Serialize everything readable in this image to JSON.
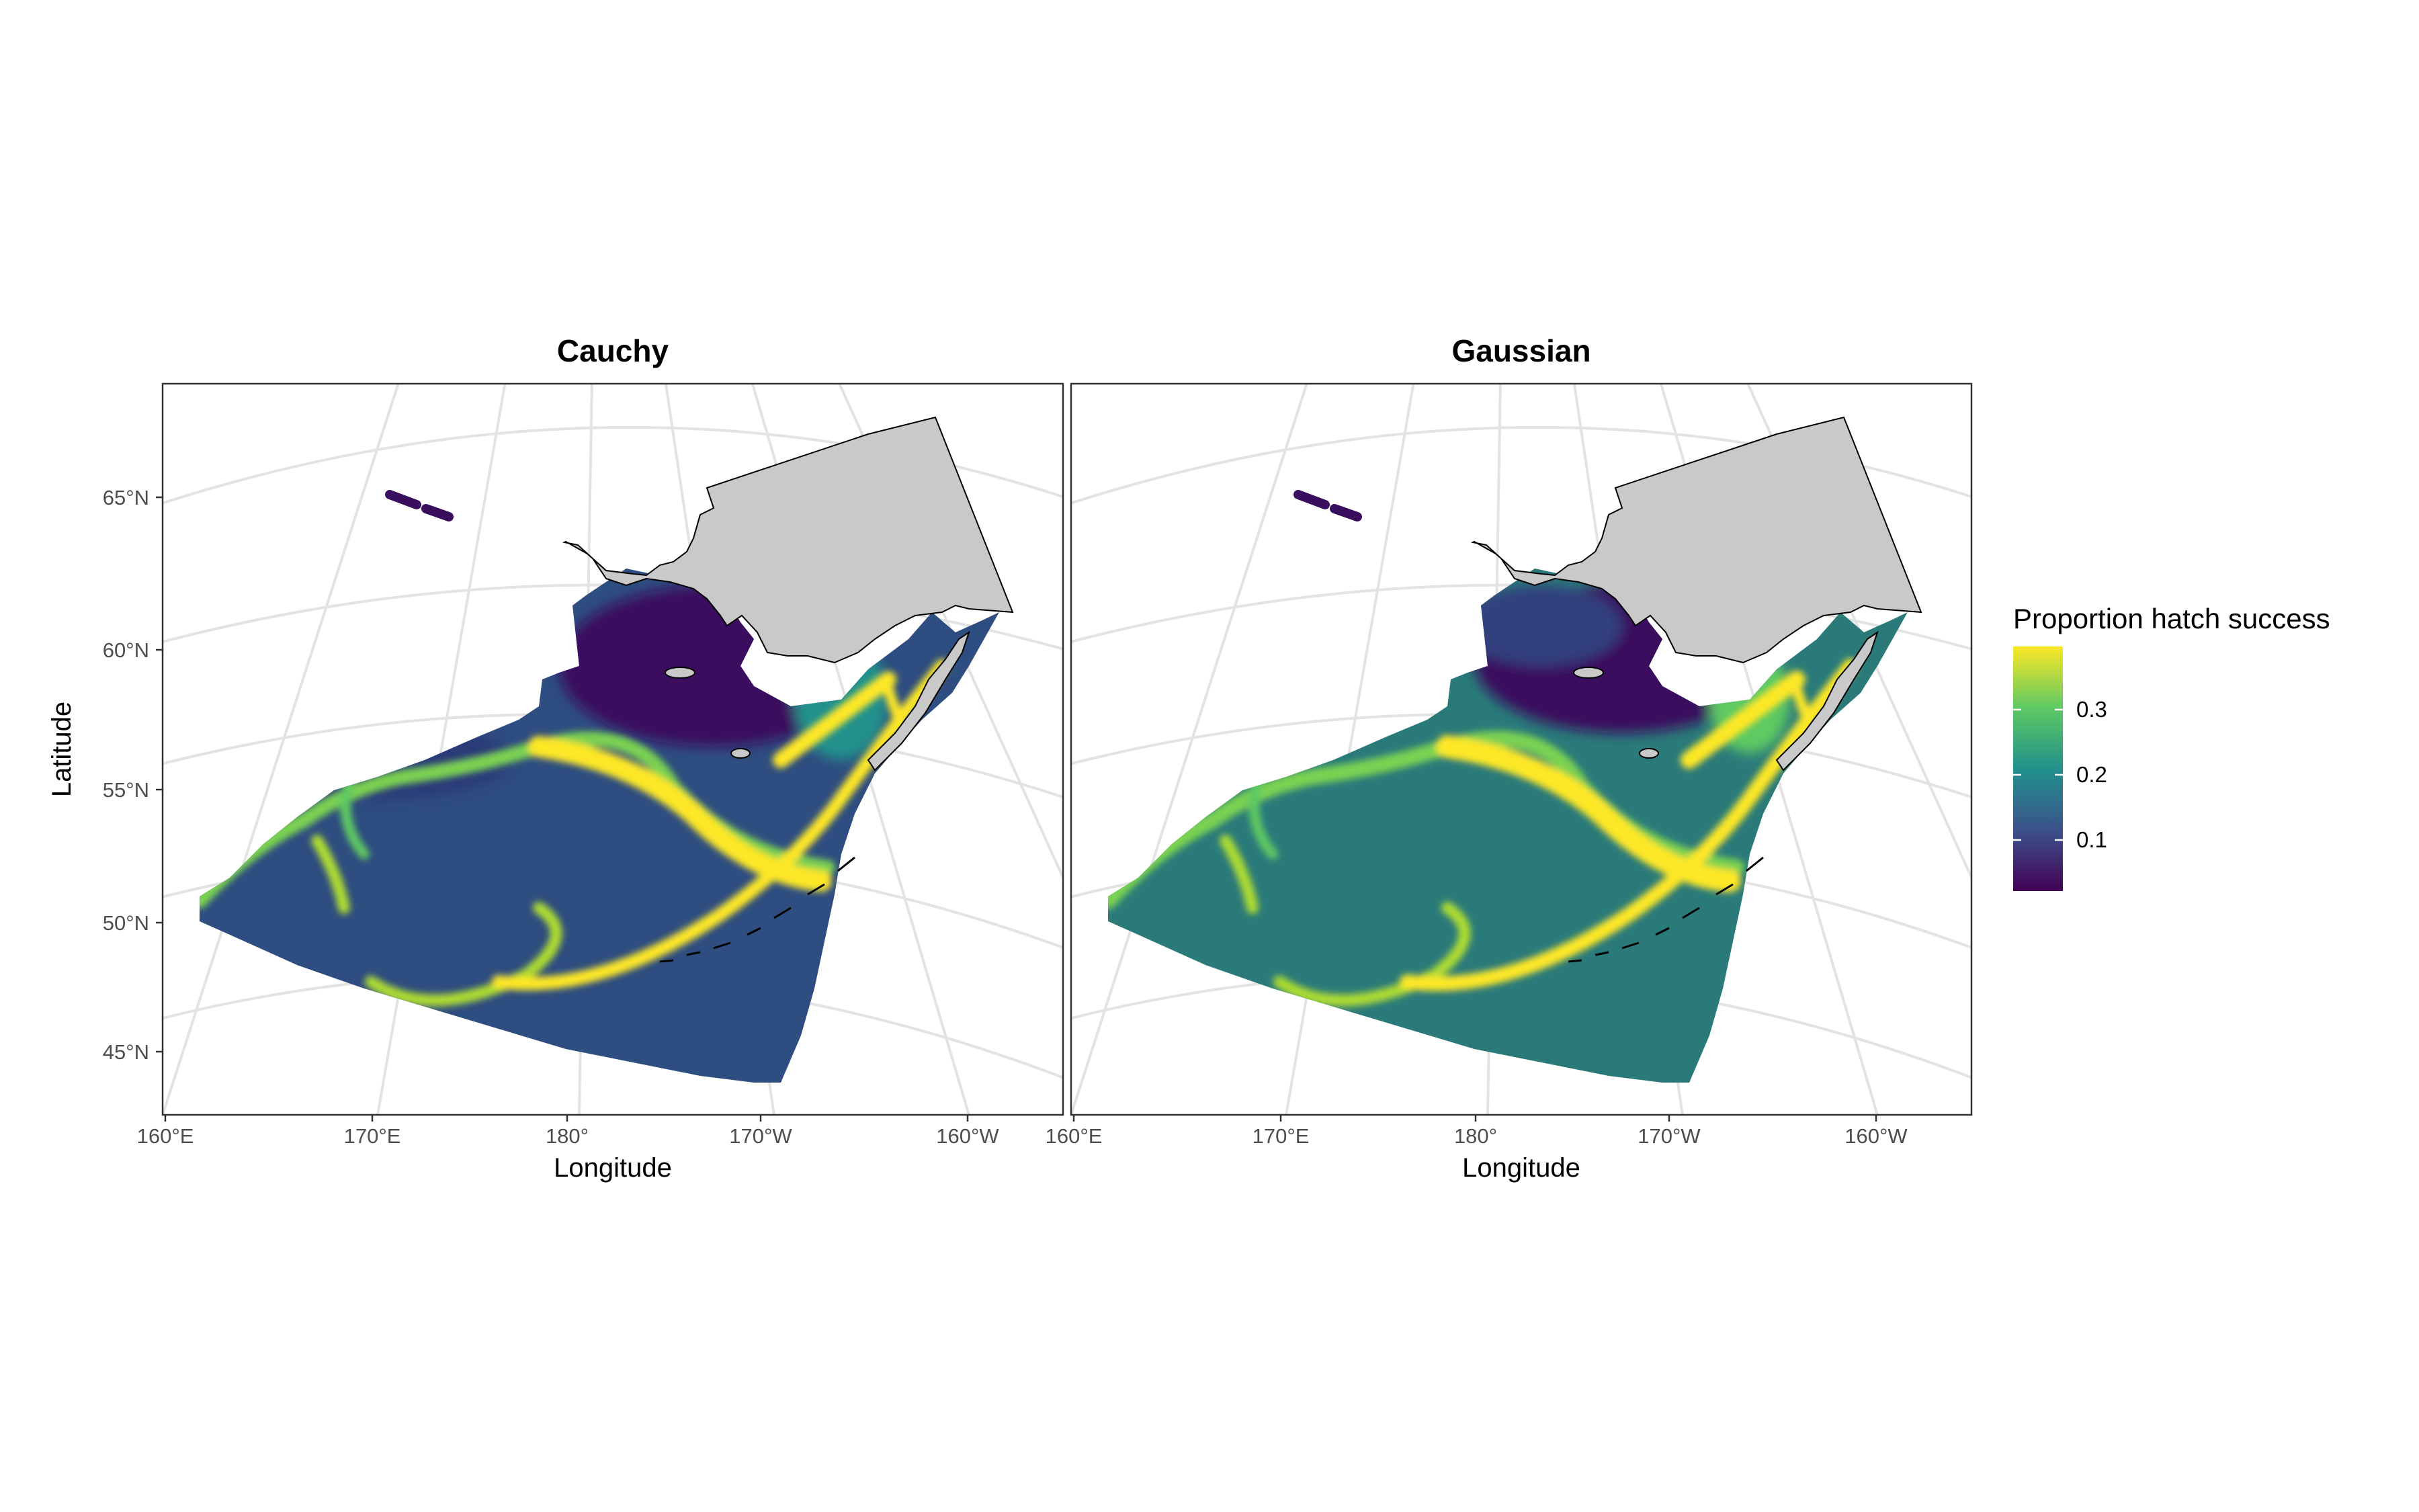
{
  "panels": [
    {
      "title": "Cauchy",
      "xlabel": "Longitude",
      "ylabel": "Latitude",
      "scheme": "cauchy"
    },
    {
      "title": "Gaussian",
      "xlabel": "Longitude",
      "ylabel": "",
      "scheme": "gaussian"
    }
  ],
  "axes": {
    "lat_ticks": [
      "65°N",
      "60°N",
      "55°N",
      "50°N",
      "45°N"
    ],
    "lon_ticks": [
      "160°E",
      "170°E",
      "180°",
      "170°W",
      "160°W"
    ]
  },
  "legend": {
    "title": "Proportion hatch success",
    "ticks": [
      "0.3",
      "0.2",
      "0.1"
    ],
    "tick_values": [
      0.3,
      0.2,
      0.1
    ],
    "range": [
      0.02,
      0.39
    ],
    "colors": [
      "#440154",
      "#3b528b",
      "#21918c",
      "#5ec962",
      "#fde725"
    ]
  },
  "colors": {
    "land": "#c9c9c9",
    "grid": "#e3e3e3",
    "cauchy_background": "#2e4d80",
    "gaussian_background": "#2a7a7a",
    "low_north": "#3a0e5e",
    "high_band": "#f2e51f"
  }
}
